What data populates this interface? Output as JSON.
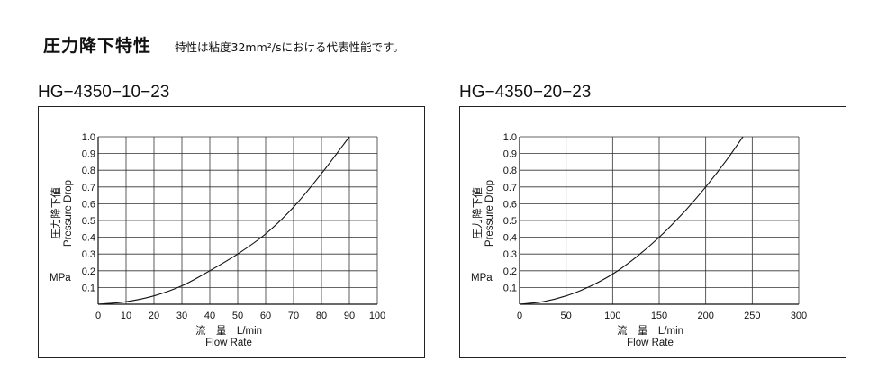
{
  "header": {
    "title": "圧力降下特性",
    "note": "特性は粘度32mm²/sにおける代表性能です。"
  },
  "chart_data": [
    {
      "type": "line",
      "title": "HG−4350−10−23",
      "xlabel_ja": "流　量　L/min",
      "xlabel_en": "Flow Rate",
      "ylabel_ja": "圧力降下値",
      "ylabel_en": "Pressure Drop",
      "yunit": "MPa",
      "xlim": [
        0,
        100
      ],
      "ylim": [
        0,
        1.0
      ],
      "xticks": [
        0,
        10,
        20,
        30,
        40,
        50,
        60,
        70,
        80,
        90,
        100
      ],
      "yticks": [
        0.1,
        0.2,
        0.3,
        0.4,
        0.5,
        0.6,
        0.7,
        0.8,
        0.9,
        1.0
      ],
      "grid": true,
      "series": [
        {
          "x": [
            0,
            10,
            20,
            30,
            40,
            50,
            60,
            70,
            80,
            90
          ],
          "y": [
            0,
            0.015,
            0.05,
            0.11,
            0.2,
            0.3,
            0.42,
            0.58,
            0.78,
            1.0
          ]
        }
      ]
    },
    {
      "type": "line",
      "title": "HG−4350−20−23",
      "xlabel_ja": "流　量　L/min",
      "xlabel_en": "Flow Rate",
      "ylabel_ja": "圧力降下値",
      "ylabel_en": "Pressure Drop",
      "yunit": "MPa",
      "xlim": [
        0,
        300
      ],
      "ylim": [
        0,
        1.0
      ],
      "xticks": [
        0,
        50,
        100,
        150,
        200,
        250,
        300
      ],
      "yticks": [
        0.1,
        0.2,
        0.3,
        0.4,
        0.5,
        0.6,
        0.7,
        0.8,
        0.9,
        1.0
      ],
      "grid": true,
      "series": [
        {
          "x": [
            0,
            25,
            50,
            75,
            100,
            125,
            150,
            175,
            200,
            225,
            240
          ],
          "y": [
            0,
            0.015,
            0.05,
            0.105,
            0.18,
            0.28,
            0.4,
            0.54,
            0.7,
            0.88,
            1.0
          ]
        }
      ]
    }
  ]
}
